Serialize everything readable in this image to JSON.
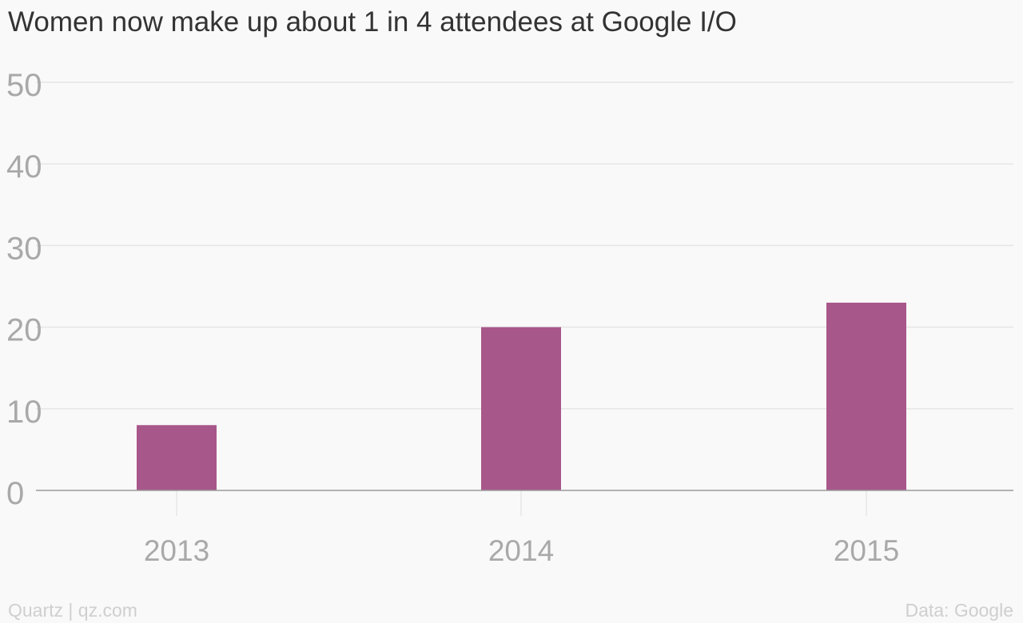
{
  "chart_data": {
    "type": "bar",
    "title": "Women now make up about 1 in 4 attendees at Google I/O",
    "xlabel": "",
    "ylabel": "",
    "categories": [
      "2013",
      "2014",
      "2015"
    ],
    "values": [
      8,
      20,
      23
    ],
    "ylim": [
      0,
      50
    ],
    "yticks": [
      "0",
      "10",
      "20",
      "30",
      "40",
      "50"
    ],
    "grid": true,
    "bar_color": "#a8578a"
  },
  "footer": {
    "left": "Quartz | qz.com",
    "right": "Data: Google"
  }
}
